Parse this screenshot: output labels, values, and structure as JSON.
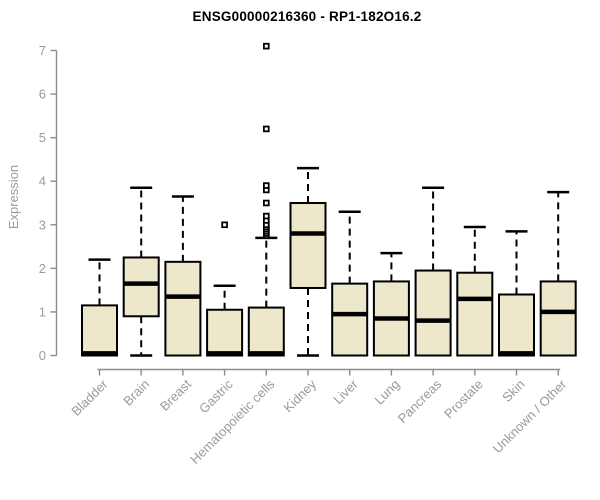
{
  "colors": {
    "box_fill": "#EDE7CC",
    "box_border": "#000000",
    "median": "#000000",
    "axis_line": "#8C8C8C",
    "axis_text": "#9A9A9A",
    "title_text": "#000000",
    "background": "#FFFFFF"
  },
  "chart_data": {
    "type": "boxplot",
    "title": "ENSG00000216360 - RP1-182O16.2",
    "xlabel": "",
    "ylabel": "Expression",
    "ylim": [
      0,
      7
    ],
    "yticks": [
      0,
      1,
      2,
      3,
      4,
      5,
      6,
      7
    ],
    "grid": false,
    "legend": "none",
    "categories": [
      "Bladder",
      "Brain",
      "Breast",
      "Gastric",
      "Hematopoietic cells",
      "Kidney",
      "Liver",
      "Lung",
      "Pancreas",
      "Prostate",
      "Skin",
      "Unknown / Other"
    ],
    "boxes": [
      {
        "category": "Bladder",
        "whisker_low": 0,
        "q1": 0,
        "median": 0.05,
        "q3": 1.15,
        "whisker_high": 2.2,
        "outliers": []
      },
      {
        "category": "Brain",
        "whisker_low": 0,
        "q1": 0.9,
        "median": 1.65,
        "q3": 2.25,
        "whisker_high": 3.85,
        "outliers": []
      },
      {
        "category": "Breast",
        "whisker_low": 0,
        "q1": 0,
        "median": 1.35,
        "q3": 2.15,
        "whisker_high": 3.65,
        "outliers": []
      },
      {
        "category": "Gastric",
        "whisker_low": 0,
        "q1": 0,
        "median": 0.05,
        "q3": 1.05,
        "whisker_high": 1.6,
        "outliers": [
          3.0
        ]
      },
      {
        "category": "Hematopoietic cells",
        "whisker_low": 0,
        "q1": 0,
        "median": 0.05,
        "q3": 1.1,
        "whisker_high": 2.7,
        "outliers": [
          2.75,
          2.8,
          2.85,
          2.9,
          2.95,
          3.0,
          3.1,
          3.2,
          3.5,
          3.8,
          3.9,
          5.2,
          7.1
        ]
      },
      {
        "category": "Kidney",
        "whisker_low": 0,
        "q1": 1.55,
        "median": 2.8,
        "q3": 3.5,
        "whisker_high": 4.3,
        "outliers": []
      },
      {
        "category": "Liver",
        "whisker_low": 0,
        "q1": 0,
        "median": 0.95,
        "q3": 1.65,
        "whisker_high": 3.3,
        "outliers": []
      },
      {
        "category": "Lung",
        "whisker_low": 0,
        "q1": 0,
        "median": 0.85,
        "q3": 1.7,
        "whisker_high": 2.35,
        "outliers": []
      },
      {
        "category": "Pancreas",
        "whisker_low": 0,
        "q1": 0,
        "median": 0.8,
        "q3": 1.95,
        "whisker_high": 3.85,
        "outliers": []
      },
      {
        "category": "Prostate",
        "whisker_low": 0,
        "q1": 0,
        "median": 1.3,
        "q3": 1.9,
        "whisker_high": 2.95,
        "outliers": []
      },
      {
        "category": "Skin",
        "whisker_low": 0,
        "q1": 0,
        "median": 0.05,
        "q3": 1.4,
        "whisker_high": 2.85,
        "outliers": []
      },
      {
        "category": "Unknown / Other",
        "whisker_low": 0,
        "q1": 0,
        "median": 1.0,
        "q3": 1.7,
        "whisker_high": 3.75,
        "outliers": []
      }
    ]
  }
}
